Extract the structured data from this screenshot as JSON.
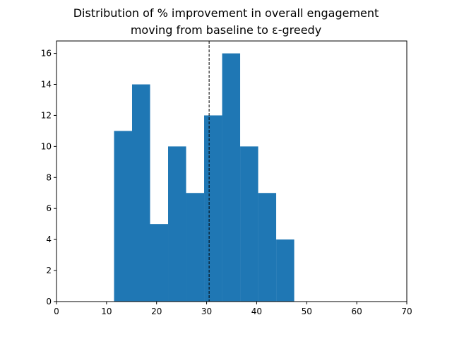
{
  "chart_data": {
    "type": "bar",
    "title_lines": [
      "Distribution of % improvement in overall engagement",
      "moving from baseline to ε-greedy"
    ],
    "xlabel": "",
    "ylabel": "",
    "xlim": [
      0,
      70
    ],
    "ylim": [
      0,
      16.8
    ],
    "xticks": [
      "0",
      "10",
      "20",
      "30",
      "40",
      "50",
      "60",
      "70"
    ],
    "yticks": [
      "0",
      "2",
      "4",
      "6",
      "8",
      "10",
      "12",
      "14",
      "16"
    ],
    "bins": [
      {
        "start": 11.5,
        "end": 15.1,
        "count": 11
      },
      {
        "start": 15.1,
        "end": 18.7,
        "count": 14
      },
      {
        "start": 18.7,
        "end": 22.3,
        "count": 5
      },
      {
        "start": 22.3,
        "end": 25.9,
        "count": 10
      },
      {
        "start": 25.9,
        "end": 29.5,
        "count": 7
      },
      {
        "start": 29.5,
        "end": 33.1,
        "count": 12
      },
      {
        "start": 33.1,
        "end": 36.7,
        "count": 16
      },
      {
        "start": 36.7,
        "end": 40.3,
        "count": 10
      },
      {
        "start": 40.3,
        "end": 43.9,
        "count": 7
      },
      {
        "start": 43.9,
        "end": 47.5,
        "count": 4
      }
    ],
    "mean_line_x": 30.5,
    "grid": false,
    "bar_color": "#1f77b4",
    "mean_line_color": "#000000"
  }
}
